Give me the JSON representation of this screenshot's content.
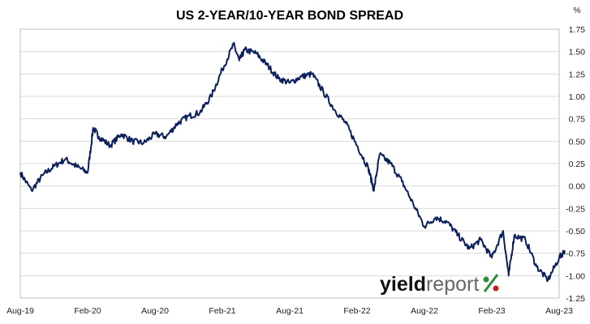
{
  "chart_data": {
    "type": "line",
    "title": "US 2-YEAR/10-YEAR BOND SPREAD",
    "ylabel": "%",
    "xlabel": "",
    "ylim": [
      -1.25,
      1.75
    ],
    "y_ticks": [
      "1.75",
      "1.50",
      "1.25",
      "1.00",
      "0.75",
      "0.50",
      "0.25",
      "0.00",
      "-0.25",
      "-0.50",
      "-0.75",
      "-1.00",
      "-1.25"
    ],
    "x_ticks": [
      "Aug-19",
      "Feb-20",
      "Aug-20",
      "Feb-21",
      "Aug-21",
      "Feb-22",
      "Aug-22",
      "Feb-23",
      "Aug-23"
    ],
    "grid": true,
    "legend": "none",
    "series": [
      {
        "color": "#0b1f5c",
        "x": [
          "2019-08",
          "2019-09",
          "2019-10",
          "2019-11",
          "2019-12",
          "2020-01",
          "2020-02",
          "2020-02",
          "2020-03",
          "2020-04",
          "2020-05",
          "2020-06",
          "2020-07",
          "2020-08",
          "2020-09",
          "2020-10",
          "2020-11",
          "2020-12",
          "2021-01",
          "2021-02",
          "2021-03",
          "2021-03",
          "2021-04",
          "2021-05",
          "2021-06",
          "2021-07",
          "2021-08",
          "2021-09",
          "2021-10",
          "2021-11",
          "2021-12",
          "2022-01",
          "2022-02",
          "2022-03",
          "2022-03",
          "2022-04",
          "2022-05",
          "2022-06",
          "2022-07",
          "2022-08",
          "2022-09",
          "2022-10",
          "2022-11",
          "2022-12",
          "2023-01",
          "2023-02",
          "2023-03",
          "2023-03",
          "2023-04",
          "2023-05",
          "2023-06",
          "2023-07",
          "2023-08",
          "2023-08"
        ],
        "values": [
          0.15,
          -0.05,
          0.12,
          0.22,
          0.3,
          0.22,
          0.15,
          0.65,
          0.55,
          0.45,
          0.58,
          0.5,
          0.48,
          0.58,
          0.55,
          0.7,
          0.78,
          0.82,
          1.0,
          1.3,
          1.58,
          1.4,
          1.52,
          1.48,
          1.35,
          1.2,
          1.15,
          1.22,
          1.25,
          1.05,
          0.85,
          0.7,
          0.45,
          0.2,
          -0.05,
          0.35,
          0.25,
          0.05,
          -0.2,
          -0.45,
          -0.35,
          -0.4,
          -0.55,
          -0.7,
          -0.6,
          -0.8,
          -0.5,
          -1.0,
          -0.55,
          -0.6,
          -0.9,
          -1.05,
          -0.8,
          -0.72
        ]
      }
    ]
  },
  "brand": {
    "logo_part1": "yield",
    "logo_part2": "report",
    "logo_symbol": "%",
    "logo_symbol_color_top": "#2e8b3a",
    "logo_symbol_color_bottom": "#c0201e"
  }
}
